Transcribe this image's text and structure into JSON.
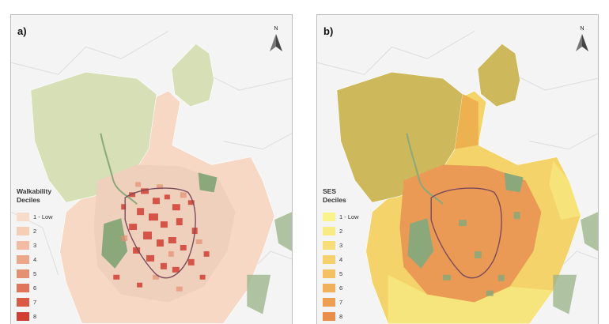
{
  "panels": [
    {
      "label": "a)",
      "north": "N",
      "legend_title": [
        "Walkability",
        "Deciles"
      ],
      "legend": [
        {
          "label": "1 - Low",
          "color": "#f8dccb"
        },
        {
          "label": "2",
          "color": "#f5ceb8"
        },
        {
          "label": "3",
          "color": "#f1bca3"
        },
        {
          "label": "4",
          "color": "#eca78b"
        },
        {
          "label": "5",
          "color": "#e58f73"
        },
        {
          "label": "6",
          "color": "#df765c"
        },
        {
          "label": "7",
          "color": "#d95b46"
        },
        {
          "label": "8",
          "color": "#d13f33"
        }
      ],
      "colors": {
        "region_north": "#d6dfb6",
        "periphery": "#f6d8c4",
        "green_space": "#8aa87a",
        "hotspot": "#d13f33"
      }
    },
    {
      "label": "b)",
      "north": "N",
      "legend_title": [
        "SES",
        "Deciles"
      ],
      "legend": [
        {
          "label": "1 - Low",
          "color": "#f9f38c"
        },
        {
          "label": "2",
          "color": "#f8eb83"
        },
        {
          "label": "3",
          "color": "#f7de78"
        },
        {
          "label": "4",
          "color": "#f5d06c"
        },
        {
          "label": "5",
          "color": "#f3c062"
        },
        {
          "label": "6",
          "color": "#f1b05a"
        },
        {
          "label": "7",
          "color": "#ee9f52"
        },
        {
          "label": "8",
          "color": "#ea8f4b"
        }
      ],
      "colors": {
        "region_north": "#cdb95c",
        "periphery": "#f3d36a",
        "green_space": "#8aa87a",
        "core": "#ea9a55"
      }
    }
  ]
}
